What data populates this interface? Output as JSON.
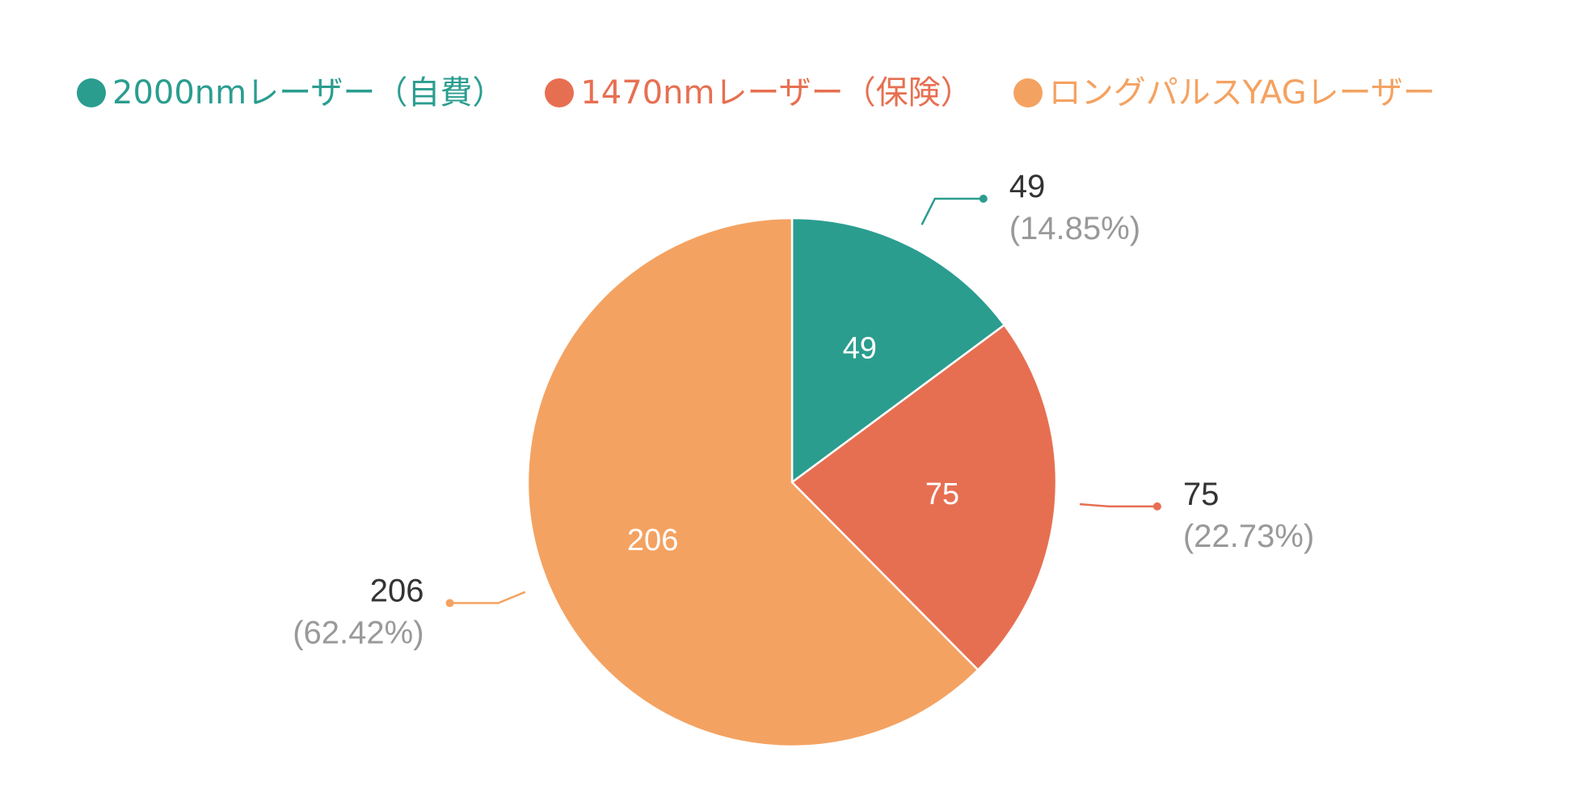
{
  "chart_data": {
    "type": "pie",
    "categories": [
      "2000nmレーザー（自費）",
      "1470nmレーザー（保険）",
      "ロングパルスYAGレーザー"
    ],
    "values": [
      49,
      75,
      206
    ],
    "percent_labels": [
      "(14.85%)",
      "(22.73%)",
      "(62.42%)"
    ],
    "colors": [
      "#2a9d8f",
      "#e76f51",
      "#f4a261"
    ],
    "legend_placement": "top"
  },
  "style": {
    "inner_label_color": "#ffffff",
    "outer_value_color": "#333333",
    "outer_percent_color": "#999999"
  }
}
